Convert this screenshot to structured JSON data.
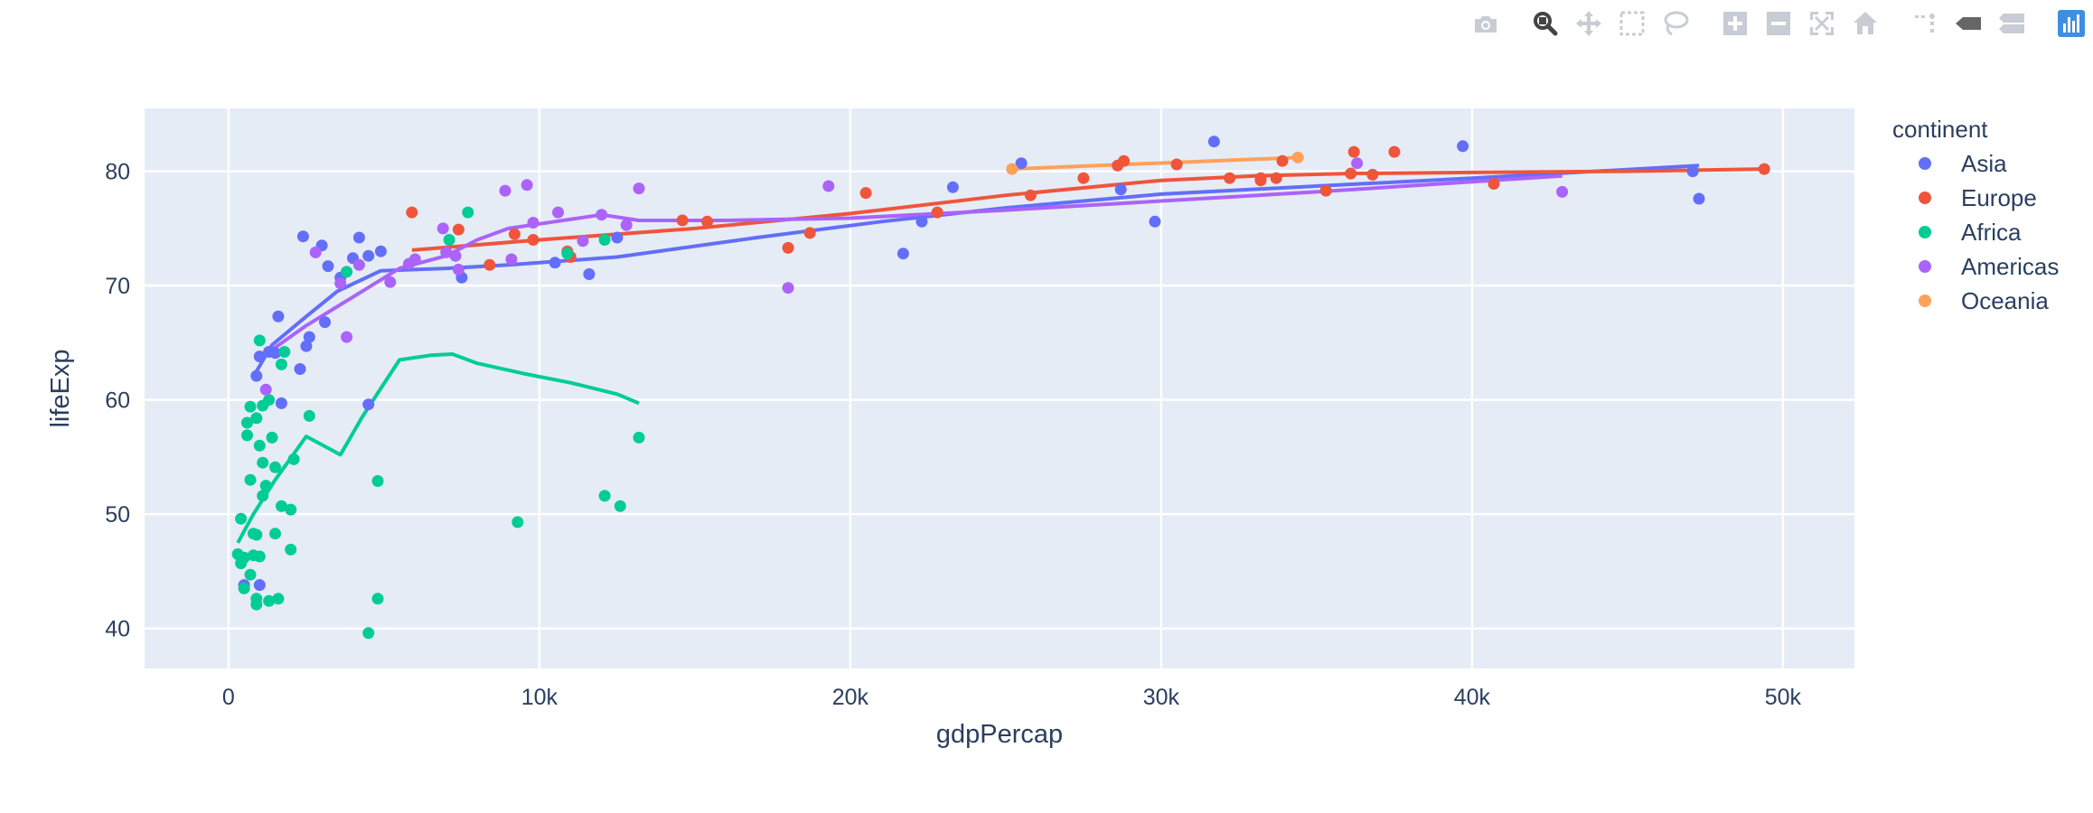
{
  "colors": {
    "Asia": "#636efa",
    "Europe": "#ef553b",
    "Africa": "#00cc96",
    "Americas": "#ab63fa",
    "Oceania": "#ffa15a"
  },
  "modebar": {
    "icons": [
      "camera-icon",
      "zoom-icon",
      "pan-icon",
      "box-select-icon",
      "lasso-icon",
      "zoom-in-icon",
      "zoom-out-icon",
      "autoscale-icon",
      "reset-axes-icon",
      "spike-lines-icon",
      "hover-closest-icon",
      "hover-compare-icon",
      "plotly-logo-icon"
    ]
  },
  "chart_data": {
    "type": "scatter",
    "xlabel": "gdpPercap",
    "ylabel": "lifeExp",
    "xlim": [
      -2700,
      52300
    ],
    "ylim": [
      36.5,
      85.5
    ],
    "xticks": [
      0,
      10000,
      20000,
      30000,
      40000,
      50000
    ],
    "xtick_labels": [
      "0",
      "10k",
      "20k",
      "30k",
      "40k",
      "50k"
    ],
    "yticks": [
      40,
      50,
      60,
      70,
      80
    ],
    "ytick_labels": [
      "40",
      "50",
      "60",
      "70",
      "80"
    ],
    "grid": true,
    "legend": {
      "title": "continent",
      "placement": "right",
      "entries": [
        "Asia",
        "Europe",
        "Africa",
        "Americas",
        "Oceania"
      ]
    },
    "series": [
      {
        "name": "Asia",
        "points": [
          [
            500,
            43.8
          ],
          [
            1000,
            43.8
          ],
          [
            900,
            62.1
          ],
          [
            1000,
            63.8
          ],
          [
            1300,
            64.2
          ],
          [
            1500,
            64.1
          ],
          [
            1600,
            67.3
          ],
          [
            1700,
            59.7
          ],
          [
            2300,
            62.7
          ],
          [
            2400,
            74.3
          ],
          [
            2500,
            64.7
          ],
          [
            2600,
            65.5
          ],
          [
            3000,
            73.5
          ],
          [
            3100,
            66.8
          ],
          [
            3200,
            71.7
          ],
          [
            3600,
            70.7
          ],
          [
            4000,
            72.4
          ],
          [
            4200,
            74.2
          ],
          [
            4500,
            72.6
          ],
          [
            4500,
            59.6
          ],
          [
            4900,
            73.0
          ],
          [
            7500,
            70.7
          ],
          [
            10500,
            72.0
          ],
          [
            11600,
            71.0
          ],
          [
            12500,
            74.2
          ],
          [
            21700,
            72.8
          ],
          [
            22300,
            75.6
          ],
          [
            23300,
            78.6
          ],
          [
            25500,
            80.7
          ],
          [
            28700,
            78.4
          ],
          [
            29800,
            75.6
          ],
          [
            31700,
            82.6
          ],
          [
            39700,
            82.2
          ],
          [
            47100,
            80.0
          ],
          [
            47300,
            77.6
          ]
        ],
        "line": [
          [
            900,
            62.5
          ],
          [
            1400,
            64.8
          ],
          [
            2500,
            67.3
          ],
          [
            3500,
            69.5
          ],
          [
            4900,
            71.3
          ],
          [
            7000,
            71.5
          ],
          [
            9000,
            71.8
          ],
          [
            12500,
            72.5
          ],
          [
            17000,
            74.2
          ],
          [
            21000,
            75.6
          ],
          [
            25000,
            76.8
          ],
          [
            30000,
            78.0
          ],
          [
            35000,
            78.7
          ],
          [
            40000,
            79.4
          ],
          [
            47300,
            80.5
          ]
        ]
      },
      {
        "name": "Europe",
        "points": [
          [
            5900,
            76.4
          ],
          [
            7400,
            74.9
          ],
          [
            8400,
            71.8
          ],
          [
            9200,
            74.5
          ],
          [
            9800,
            74.0
          ],
          [
            10900,
            73.0
          ],
          [
            11000,
            72.5
          ],
          [
            14600,
            75.7
          ],
          [
            15400,
            75.6
          ],
          [
            18000,
            73.3
          ],
          [
            18700,
            74.6
          ],
          [
            20500,
            78.1
          ],
          [
            22800,
            76.4
          ],
          [
            25800,
            77.9
          ],
          [
            27500,
            79.4
          ],
          [
            28600,
            80.5
          ],
          [
            28800,
            80.9
          ],
          [
            30500,
            80.6
          ],
          [
            32200,
            79.4
          ],
          [
            33200,
            79.4
          ],
          [
            33200,
            79.2
          ],
          [
            33700,
            79.4
          ],
          [
            33900,
            80.9
          ],
          [
            35300,
            78.3
          ],
          [
            36100,
            79.8
          ],
          [
            36200,
            81.7
          ],
          [
            36800,
            79.7
          ],
          [
            37500,
            81.7
          ],
          [
            40700,
            78.9
          ],
          [
            49400,
            80.2
          ]
        ],
        "line": [
          [
            5900,
            73.1
          ],
          [
            10000,
            74.0
          ],
          [
            15000,
            75.0
          ],
          [
            20000,
            76.3
          ],
          [
            25000,
            77.9
          ],
          [
            30000,
            79.2
          ],
          [
            33000,
            79.6
          ],
          [
            36000,
            79.8
          ],
          [
            40000,
            79.9
          ],
          [
            45000,
            80.0
          ],
          [
            49400,
            80.2
          ]
        ]
      },
      {
        "name": "Africa",
        "points": [
          [
            300,
            46.5
          ],
          [
            400,
            45.7
          ],
          [
            400,
            49.6
          ],
          [
            500,
            43.5
          ],
          [
            500,
            46.2
          ],
          [
            600,
            56.9
          ],
          [
            600,
            58.0
          ],
          [
            700,
            53.0
          ],
          [
            700,
            59.4
          ],
          [
            700,
            44.7
          ],
          [
            800,
            48.3
          ],
          [
            800,
            46.4
          ],
          [
            900,
            42.1
          ],
          [
            900,
            42.6
          ],
          [
            900,
            58.4
          ],
          [
            900,
            48.2
          ],
          [
            1000,
            46.3
          ],
          [
            1000,
            56.0
          ],
          [
            1000,
            65.2
          ],
          [
            1100,
            51.6
          ],
          [
            1100,
            54.5
          ],
          [
            1100,
            59.5
          ],
          [
            1200,
            52.5
          ],
          [
            1300,
            42.4
          ],
          [
            1300,
            60.0
          ],
          [
            1400,
            56.7
          ],
          [
            1500,
            54.1
          ],
          [
            1500,
            48.3
          ],
          [
            1600,
            42.6
          ],
          [
            1700,
            63.1
          ],
          [
            1700,
            50.7
          ],
          [
            1800,
            64.2
          ],
          [
            2000,
            50.4
          ],
          [
            2000,
            46.9
          ],
          [
            2100,
            54.8
          ],
          [
            2600,
            58.6
          ],
          [
            3800,
            71.2
          ],
          [
            4500,
            39.6
          ],
          [
            4800,
            52.9
          ],
          [
            4800,
            42.6
          ],
          [
            7100,
            74.0
          ],
          [
            7700,
            76.4
          ],
          [
            9300,
            49.3
          ],
          [
            10900,
            72.8
          ],
          [
            12100,
            74.0
          ],
          [
            12100,
            51.6
          ],
          [
            12600,
            50.7
          ],
          [
            13200,
            56.7
          ]
        ],
        "line": [
          [
            300,
            47.5
          ],
          [
            800,
            50.0
          ],
          [
            1500,
            53.0
          ],
          [
            2500,
            56.8
          ],
          [
            3600,
            55.2
          ],
          [
            4300,
            58.5
          ],
          [
            4800,
            60.6
          ],
          [
            5500,
            63.5
          ],
          [
            6500,
            63.9
          ],
          [
            7200,
            64.0
          ],
          [
            8000,
            63.2
          ],
          [
            9500,
            62.3
          ],
          [
            11000,
            61.5
          ],
          [
            12500,
            60.5
          ],
          [
            13200,
            59.7
          ]
        ]
      },
      {
        "name": "Americas",
        "points": [
          [
            1200,
            60.9
          ],
          [
            2800,
            72.9
          ],
          [
            3600,
            70.2
          ],
          [
            3800,
            65.5
          ],
          [
            4200,
            71.8
          ],
          [
            5200,
            70.3
          ],
          [
            5800,
            71.9
          ],
          [
            6000,
            72.3
          ],
          [
            6900,
            75.0
          ],
          [
            7000,
            72.9
          ],
          [
            7300,
            72.6
          ],
          [
            7400,
            71.4
          ],
          [
            8900,
            78.3
          ],
          [
            9100,
            72.3
          ],
          [
            9600,
            78.8
          ],
          [
            9800,
            75.5
          ],
          [
            10600,
            76.4
          ],
          [
            11400,
            73.9
          ],
          [
            12000,
            76.2
          ],
          [
            12800,
            75.3
          ],
          [
            13200,
            78.5
          ],
          [
            18000,
            69.8
          ],
          [
            19300,
            78.7
          ],
          [
            36300,
            80.7
          ],
          [
            42900,
            78.2
          ]
        ],
        "line": [
          [
            1200,
            64.0
          ],
          [
            2500,
            66.5
          ],
          [
            4000,
            69.0
          ],
          [
            5500,
            71.5
          ],
          [
            7000,
            72.6
          ],
          [
            8000,
            74.0
          ],
          [
            9000,
            75.0
          ],
          [
            10500,
            75.6
          ],
          [
            12000,
            76.2
          ],
          [
            13200,
            75.7
          ],
          [
            16000,
            75.7
          ],
          [
            20000,
            75.9
          ],
          [
            25000,
            76.6
          ],
          [
            30000,
            77.4
          ],
          [
            35000,
            78.2
          ],
          [
            42900,
            79.6
          ]
        ]
      },
      {
        "name": "Oceania",
        "points": [
          [
            25200,
            80.2
          ],
          [
            34400,
            81.2
          ]
        ],
        "line": [
          [
            25200,
            80.2
          ],
          [
            34400,
            81.2
          ]
        ]
      }
    ]
  }
}
